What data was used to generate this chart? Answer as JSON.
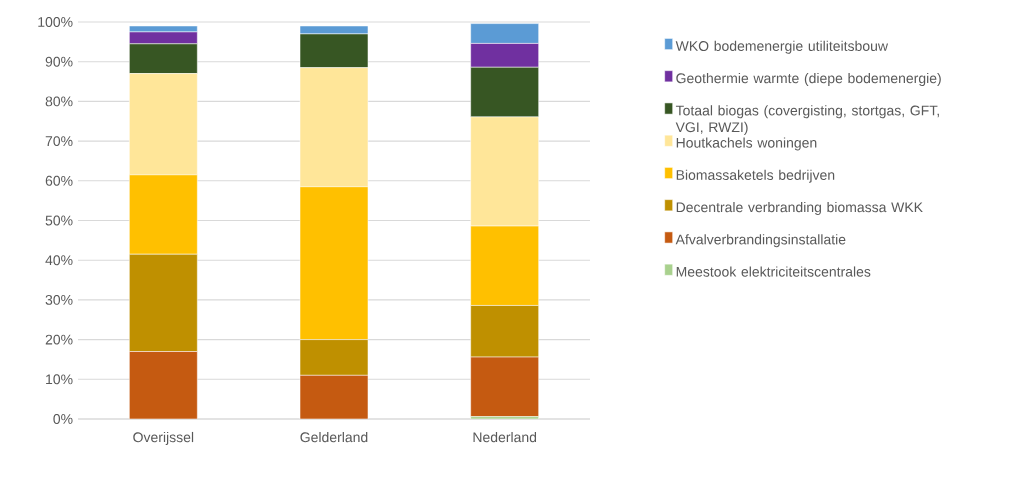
{
  "chart_data": {
    "type": "bar",
    "stacked": true,
    "categories": [
      "Overijssel",
      "Gelderland",
      "Nederland"
    ],
    "series": [
      {
        "name": "Meestook elektriciteitscentrales",
        "color": "#a9d18e",
        "values": [
          0,
          0,
          0.6
        ]
      },
      {
        "name": "Afvalverbrandingsinstallatie",
        "color": "#c55a11",
        "values": [
          17,
          11,
          15
        ]
      },
      {
        "name": "Decentrale verbranding biomassa WKK",
        "color": "#bf9000",
        "values": [
          24.5,
          9,
          13
        ]
      },
      {
        "name": "Biomassaketels bedrijven",
        "color": "#ffc000",
        "values": [
          20,
          38.5,
          20
        ]
      },
      {
        "name": "Houtkachels woningen",
        "color": "#ffe699",
        "values": [
          25.5,
          30,
          27.5
        ]
      },
      {
        "name": "Totaal biogas (covergisting, stortgas, GFT, VGI, RWZI)",
        "color": "#375623",
        "values": [
          7.5,
          8.5,
          12.5
        ]
      },
      {
        "name": "Geothermie warmte (diepe bodemenergie)",
        "color": "#7030a0",
        "values": [
          3,
          0,
          6
        ]
      },
      {
        "name": "WKO bodemenergie utiliteitsbouw",
        "color": "#5b9bd5",
        "values": [
          1.5,
          2,
          5
        ]
      }
    ],
    "ylim": [
      0,
      100
    ],
    "yticks": [
      {
        "value": 0,
        "label": "0%"
      },
      {
        "value": 10,
        "label": "10%"
      },
      {
        "value": 20,
        "label": "20%"
      },
      {
        "value": 30,
        "label": "30%"
      },
      {
        "value": 40,
        "label": "40%"
      },
      {
        "value": 50,
        "label": "50%"
      },
      {
        "value": 60,
        "label": "60%"
      },
      {
        "value": 70,
        "label": "70%"
      },
      {
        "value": 80,
        "label": "80%"
      },
      {
        "value": 90,
        "label": "90%"
      },
      {
        "value": 100,
        "label": "100%"
      }
    ],
    "grid": "y",
    "legend": "right"
  }
}
